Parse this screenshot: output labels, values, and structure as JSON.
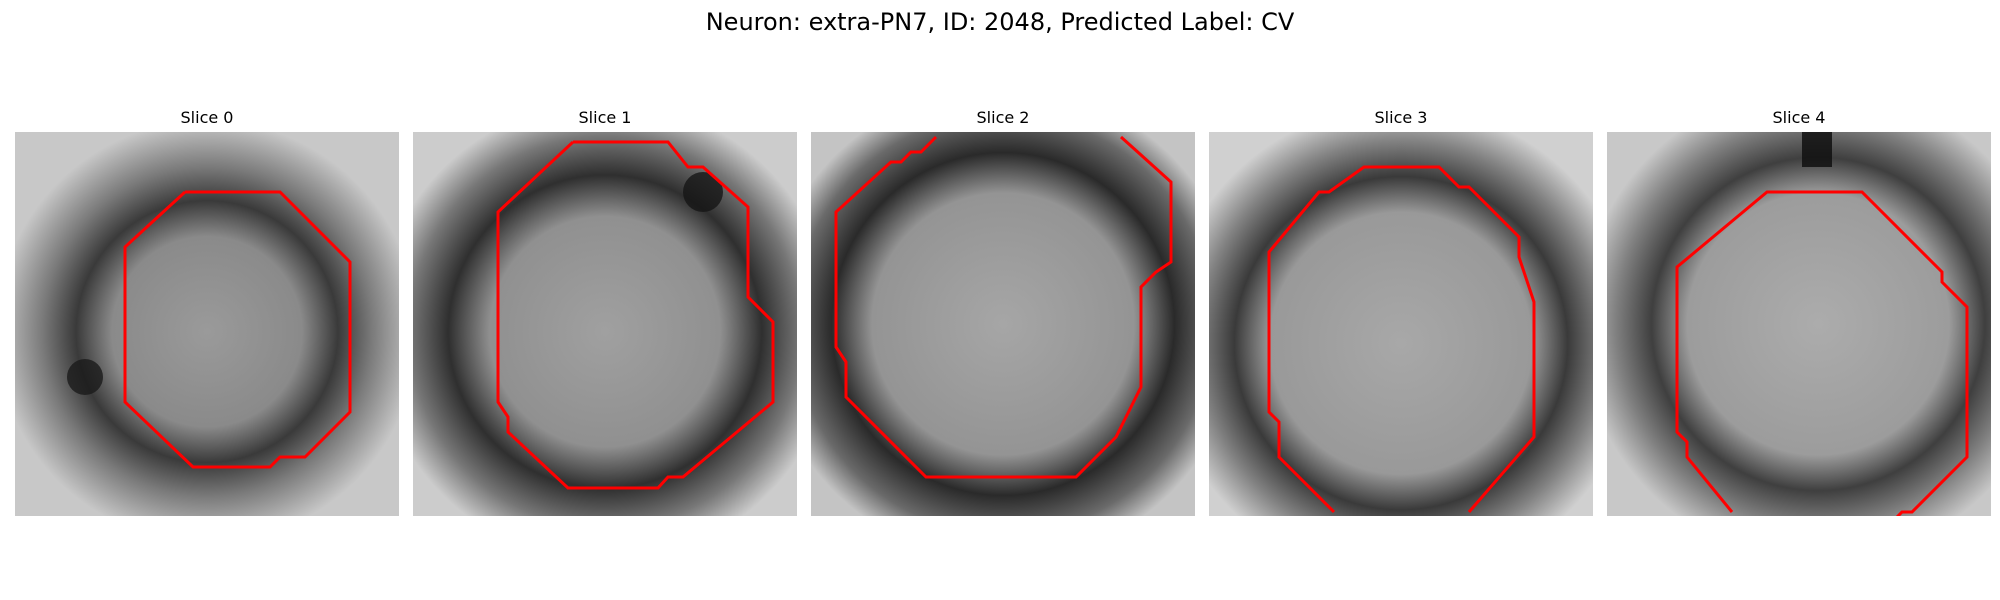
{
  "figure": {
    "title": "Neuron: extra-PN7, ID: 2048, Predicted Label: CV"
  },
  "colors": {
    "contour": "#ff0000",
    "background": "#ffffff"
  },
  "panels": [
    {
      "title": "Slice 0"
    },
    {
      "title": "Slice 1"
    },
    {
      "title": "Slice 2"
    },
    {
      "title": "Slice 3"
    },
    {
      "title": "Slice 4"
    }
  ]
}
